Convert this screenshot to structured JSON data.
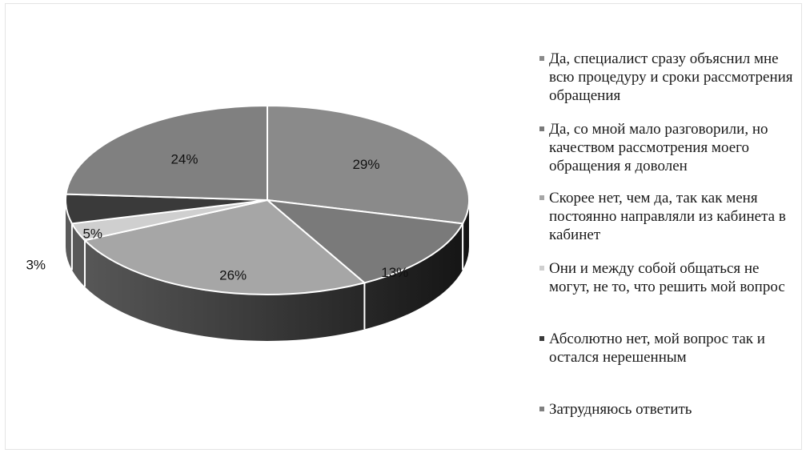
{
  "chart_data": {
    "type": "pie",
    "title": "",
    "categories": [
      "Да, специалист сразу объяснил мне всю процедуру и сроки рассмотрения обращения",
      "Да, со мной мало разговорили, но качеством рассмотрения моего обращения я доволен",
      "Скорее нет, чем да, так как меня постоянно направляли из кабинета в кабинет",
      "Они и между собой общаться не могут, не то, что решить мой вопрос",
      "Абсолютно нет, мой вопрос так и остался нерешенным",
      "Затрудняюсь ответить"
    ],
    "values": [
      29,
      13,
      26,
      3,
      5,
      24
    ],
    "value_labels": [
      "29%",
      "13%",
      "26%",
      "3%",
      "5%",
      "24%"
    ],
    "colors": [
      "#8a8a8a",
      "#7a7a7a",
      "#a6a6a6",
      "#cfcfcf",
      "#3a3a3a",
      "#808080"
    ],
    "legend_position": "right",
    "style": "3d-pie"
  }
}
